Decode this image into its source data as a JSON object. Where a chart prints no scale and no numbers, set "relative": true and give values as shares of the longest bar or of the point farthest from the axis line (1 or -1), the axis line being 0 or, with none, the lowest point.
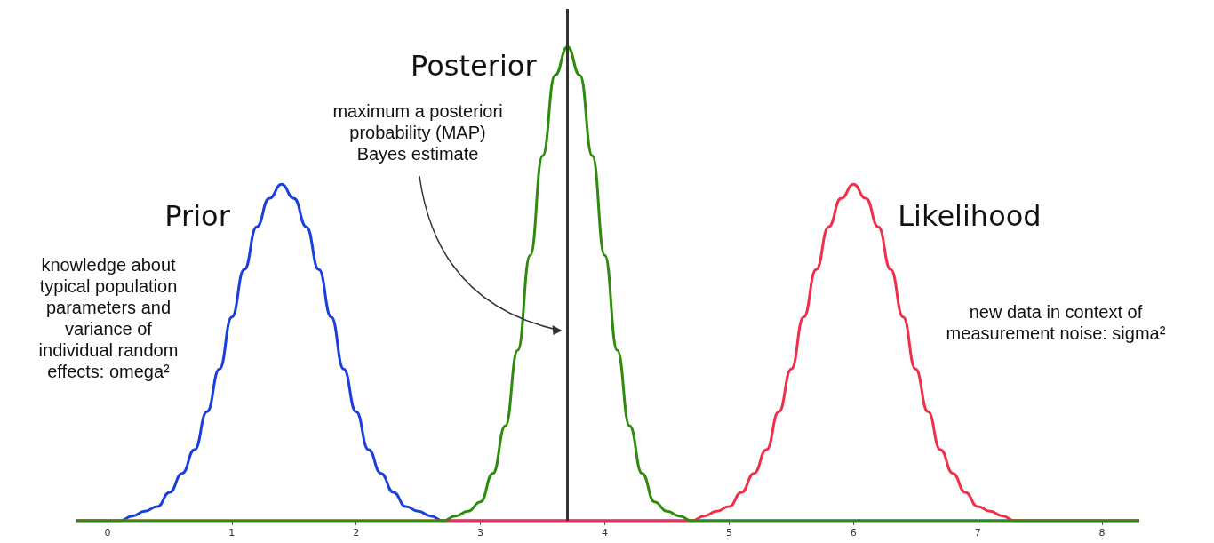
{
  "chart_data": {
    "type": "line",
    "relative": true,
    "xlim": [
      -0.25,
      8.3
    ],
    "xticks": [
      0,
      1,
      2,
      3,
      4,
      5,
      6,
      7,
      8
    ],
    "marker": "none",
    "series": [
      {
        "name": "Prior",
        "color": "#1a3fdc",
        "x": [
          -0.25,
          0,
          0.1,
          0.2,
          0.3,
          0.4,
          0.5,
          0.6,
          0.7,
          0.8,
          0.9,
          1.0,
          1.1,
          1.2,
          1.3,
          1.4,
          1.5,
          1.6,
          1.7,
          1.8,
          1.9,
          2.0,
          2.1,
          2.2,
          2.3,
          2.4,
          2.5,
          2.6,
          2.7,
          2.8,
          8.3
        ],
        "values": [
          0,
          0,
          0,
          0.01,
          0.02,
          0.03,
          0.06,
          0.1,
          0.15,
          0.23,
          0.32,
          0.43,
          0.53,
          0.62,
          0.68,
          0.71,
          0.68,
          0.62,
          0.53,
          0.43,
          0.32,
          0.23,
          0.15,
          0.1,
          0.06,
          0.03,
          0.02,
          0.01,
          0,
          0,
          0
        ]
      },
      {
        "name": "Likelihood",
        "color": "#f0304a",
        "x": [
          -0.25,
          4.6,
          4.7,
          4.8,
          4.9,
          5.0,
          5.1,
          5.2,
          5.3,
          5.4,
          5.5,
          5.6,
          5.7,
          5.8,
          5.9,
          6.0,
          6.1,
          6.2,
          6.3,
          6.4,
          6.5,
          6.6,
          6.7,
          6.8,
          6.9,
          7.0,
          7.1,
          7.2,
          7.3,
          7.4,
          8.3
        ],
        "values": [
          0,
          0,
          0,
          0.01,
          0.02,
          0.03,
          0.06,
          0.1,
          0.15,
          0.23,
          0.32,
          0.43,
          0.53,
          0.62,
          0.68,
          0.71,
          0.68,
          0.62,
          0.53,
          0.43,
          0.32,
          0.23,
          0.15,
          0.1,
          0.06,
          0.03,
          0.02,
          0.01,
          0,
          0,
          0
        ]
      },
      {
        "name": "Posterior",
        "color": "#2e8b0e",
        "x": [
          -0.25,
          2.6,
          2.7,
          2.8,
          2.9,
          3.0,
          3.1,
          3.2,
          3.3,
          3.4,
          3.5,
          3.6,
          3.7,
          3.8,
          3.9,
          4.0,
          4.1,
          4.2,
          4.3,
          4.4,
          4.5,
          4.6,
          4.7,
          4.8,
          8.3
        ],
        "values": [
          0,
          0,
          0,
          0.01,
          0.02,
          0.04,
          0.1,
          0.2,
          0.36,
          0.56,
          0.77,
          0.94,
          1,
          0.94,
          0.77,
          0.56,
          0.36,
          0.2,
          0.1,
          0.04,
          0.02,
          0.01,
          0,
          0,
          0
        ]
      }
    ],
    "ref_lines": [
      {
        "axis": "x",
        "value": 3.7,
        "color": "#333333"
      }
    ],
    "annotations": [
      "maximum a posteriori\nprobability (MAP)\nBayes estimate",
      "knowledge about\ntypical population\nparameters and\nvariance of\nindividual random\neffects: omega²",
      "new data in context of\nmeasurement noise: sigma²"
    ]
  }
}
